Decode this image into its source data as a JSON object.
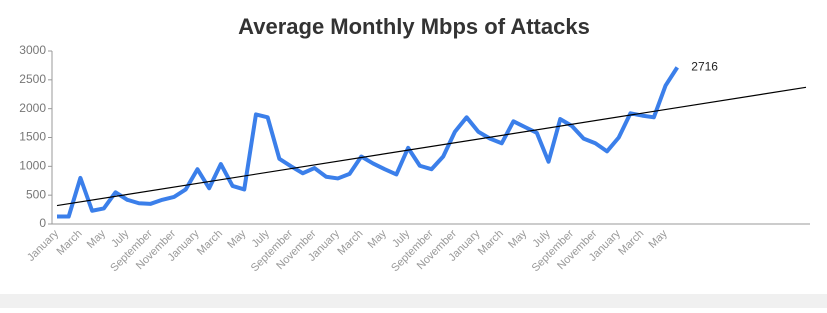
{
  "chart_data": {
    "type": "line",
    "title": "Average Monthly Mbps of Attacks",
    "categories": [
      "January",
      null,
      "March",
      null,
      "May",
      null,
      "July",
      null,
      "September",
      null,
      "November",
      null,
      "January",
      null,
      "March",
      null,
      "May",
      null,
      "July",
      null,
      "September",
      null,
      "November",
      null,
      "January",
      null,
      "March",
      null,
      "May",
      null,
      "July",
      null,
      "September",
      null,
      "November",
      null,
      "January",
      null,
      "March",
      null,
      "May",
      null,
      "July",
      null,
      "September",
      null,
      "November",
      null,
      "January",
      null,
      "March",
      null,
      "May",
      null,
      null,
      null,
      null,
      null,
      null,
      null,
      null,
      null,
      null,
      null,
      null
    ],
    "series": [
      {
        "color": "#3b7fea",
        "values": [
          130,
          130,
          800,
          230,
          270,
          550,
          420,
          360,
          350,
          420,
          470,
          600,
          950,
          620,
          1040,
          660,
          600,
          1900,
          1850,
          1130,
          1000,
          880,
          970,
          820,
          790,
          870,
          1170,
          1050,
          950,
          860,
          1320,
          1010,
          950,
          1170,
          1600,
          1850,
          1600,
          1480,
          1400,
          1780,
          1680,
          1580,
          1080,
          1820,
          1700,
          1480,
          1400,
          1260,
          1500,
          1920,
          1880,
          1850,
          2400,
          2716,
          null,
          null,
          null,
          null,
          null,
          null,
          null,
          null,
          null,
          null,
          null
        ]
      }
    ],
    "trendline": {
      "start": 320,
      "end": 2370,
      "color": "#000000"
    },
    "data_label_index": 53,
    "ylim": [
      0,
      3000
    ],
    "yticks": [
      0,
      500,
      1000,
      1500,
      2000,
      2500,
      3000
    ],
    "grid": false
  }
}
